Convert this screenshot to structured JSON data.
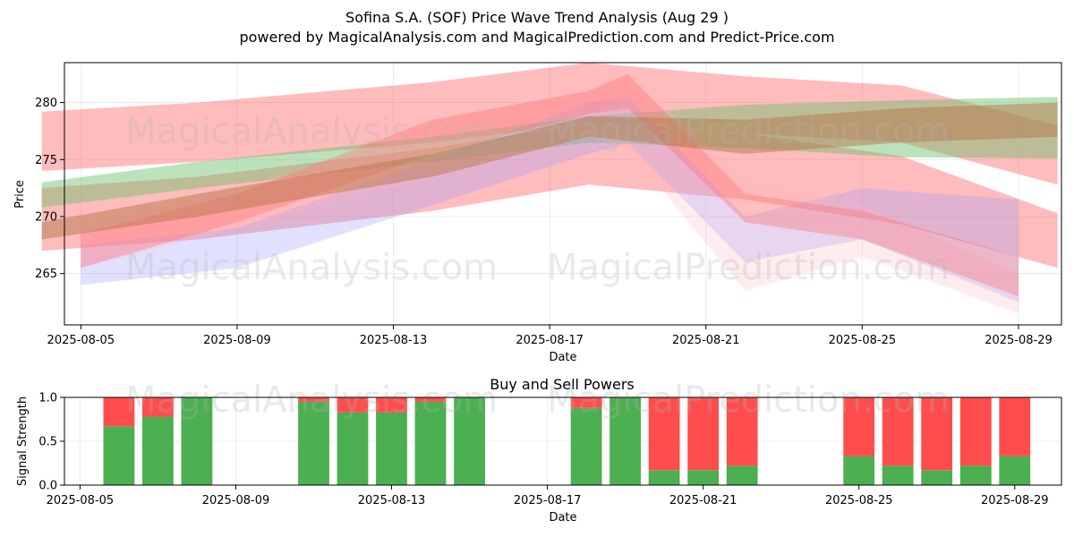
{
  "header": {
    "title": "Sofina S.A. (SOF) Price Wave Trend Analysis (Aug 29 )",
    "subtitle": "powered by MagicalAnalysis.com and MagicalPrediction.com and Predict-Price.com"
  },
  "watermarks": [
    "MagicalAnalysis.com",
    "MagicalPrediction.com"
  ],
  "colors": {
    "green": "#4caf50",
    "red": "#ff4d4d",
    "band_red": "#ff6b6b",
    "band_green": "#6abf69",
    "band_blue": "#9b9bff",
    "band_brown": "#b5764a"
  },
  "chart_data": [
    {
      "type": "area",
      "title": "",
      "xlabel": "Date",
      "ylabel": "Price",
      "x_range": [
        "2025-08-04",
        "2025-08-30"
      ],
      "ylim": [
        260.5,
        283.5
      ],
      "x_ticks": [
        "2025-08-05",
        "2025-08-09",
        "2025-08-13",
        "2025-08-17",
        "2025-08-21",
        "2025-08-25",
        "2025-08-29"
      ],
      "y_ticks": [
        265,
        270,
        275,
        280
      ],
      "grid": true,
      "series": [
        {
          "color": "red",
          "opacity": 0.45,
          "x": [
            "2025-08-04",
            "2025-08-08",
            "2025-08-14",
            "2025-08-18",
            "2025-08-22",
            "2025-08-26",
            "2025-08-30"
          ],
          "upper": [
            279.2,
            280.0,
            281.8,
            283.5,
            282.3,
            281.5,
            278.0
          ],
          "lower": [
            274.0,
            274.8,
            276.5,
            278.2,
            277.3,
            276.5,
            272.8
          ]
        },
        {
          "color": "red",
          "opacity": 0.45,
          "x": [
            "2025-08-04",
            "2025-08-08",
            "2025-08-14",
            "2025-08-18",
            "2025-08-22",
            "2025-08-26",
            "2025-08-30"
          ],
          "upper": [
            272.5,
            273.5,
            276.0,
            278.2,
            277.3,
            275.3,
            270.3
          ],
          "lower": [
            267.0,
            268.0,
            270.5,
            272.8,
            271.5,
            269.3,
            265.5
          ]
        },
        {
          "color": "green",
          "opacity": 0.45,
          "x": [
            "2025-08-04",
            "2025-08-08",
            "2025-08-14",
            "2025-08-18",
            "2025-08-22",
            "2025-08-26",
            "2025-08-30"
          ],
          "upper": [
            273.0,
            274.8,
            277.0,
            278.8,
            279.8,
            280.2,
            280.5
          ],
          "lower": [
            270.8,
            272.5,
            274.8,
            276.5,
            276.0,
            275.2,
            275.1
          ]
        },
        {
          "color": "blue",
          "opacity": 0.3,
          "x": [
            "2025-08-05",
            "2025-08-09",
            "2025-08-14",
            "2025-08-18",
            "2025-08-19",
            "2025-08-22",
            "2025-08-25",
            "2025-08-29"
          ],
          "upper": [
            267.5,
            269.0,
            275.0,
            280.0,
            280.5,
            270.0,
            272.5,
            271.5
          ],
          "lower": [
            264.0,
            265.5,
            271.0,
            275.5,
            276.5,
            266.0,
            268.0,
            262.5
          ]
        },
        {
          "color": "pink",
          "opacity": 0.25,
          "x": [
            "2025-08-05",
            "2025-08-09",
            "2025-08-14",
            "2025-08-18",
            "2025-08-19",
            "2025-08-22",
            "2025-08-25",
            "2025-08-29"
          ],
          "upper": [
            269.0,
            272.5,
            277.5,
            281.5,
            282.5,
            273.5,
            271.0,
            265.0
          ],
          "lower": [
            265.5,
            269.0,
            273.5,
            277.0,
            276.0,
            263.5,
            266.5,
            261.5
          ]
        },
        {
          "color": "red",
          "opacity": 0.35,
          "x": [
            "2025-08-05",
            "2025-08-09",
            "2025-08-14",
            "2025-08-18",
            "2025-08-19",
            "2025-08-22",
            "2025-08-25",
            "2025-08-29"
          ],
          "upper": [
            268.5,
            272.0,
            278.5,
            281.0,
            282.5,
            272.0,
            270.5,
            266.5
          ],
          "lower": [
            265.5,
            269.5,
            275.5,
            279.0,
            279.5,
            269.5,
            268.0,
            263.0
          ]
        },
        {
          "color": "brown",
          "opacity": 0.5,
          "x": [
            "2025-08-04",
            "2025-08-08",
            "2025-08-14",
            "2025-08-18",
            "2025-08-22",
            "2025-08-26",
            "2025-08-30"
          ],
          "upper": [
            269.5,
            272.0,
            275.5,
            278.8,
            278.5,
            279.5,
            280.0
          ],
          "lower": [
            268.0,
            270.0,
            273.5,
            277.0,
            275.5,
            276.5,
            277.0
          ]
        }
      ]
    },
    {
      "type": "bar",
      "title": "Buy and Sell Powers",
      "xlabel": "Date",
      "ylabel": "Signal Strength",
      "ylim": [
        0,
        1
      ],
      "y_ticks": [
        "0.0",
        "0.5",
        "1.0"
      ],
      "x_ticks": [
        "2025-08-05",
        "2025-08-09",
        "2025-08-13",
        "2025-08-17",
        "2025-08-21",
        "2025-08-25",
        "2025-08-29"
      ],
      "x_range": [
        "2025-08-04.6",
        "2025-08-30.2"
      ],
      "grid": true,
      "categories": [
        "2025-08-06",
        "2025-08-07",
        "2025-08-08",
        "2025-08-11",
        "2025-08-12",
        "2025-08-13",
        "2025-08-14",
        "2025-08-15",
        "2025-08-18",
        "2025-08-19",
        "2025-08-20",
        "2025-08-21",
        "2025-08-22",
        "2025-08-25",
        "2025-08-26",
        "2025-08-27",
        "2025-08-28",
        "2025-08-29"
      ],
      "series": [
        {
          "name": "buy",
          "color": "green",
          "values": [
            0.67,
            0.78,
            1.0,
            0.95,
            0.83,
            0.83,
            0.95,
            1.0,
            0.88,
            1.0,
            0.17,
            0.17,
            0.22,
            0.33,
            0.22,
            0.17,
            0.22,
            0.33
          ]
        },
        {
          "name": "sell",
          "color": "red",
          "values": [
            0.33,
            0.22,
            0.0,
            0.05,
            0.17,
            0.17,
            0.05,
            0.0,
            0.12,
            0.0,
            0.83,
            0.83,
            0.78,
            0.67,
            0.78,
            0.83,
            0.78,
            0.67
          ]
        }
      ]
    }
  ]
}
